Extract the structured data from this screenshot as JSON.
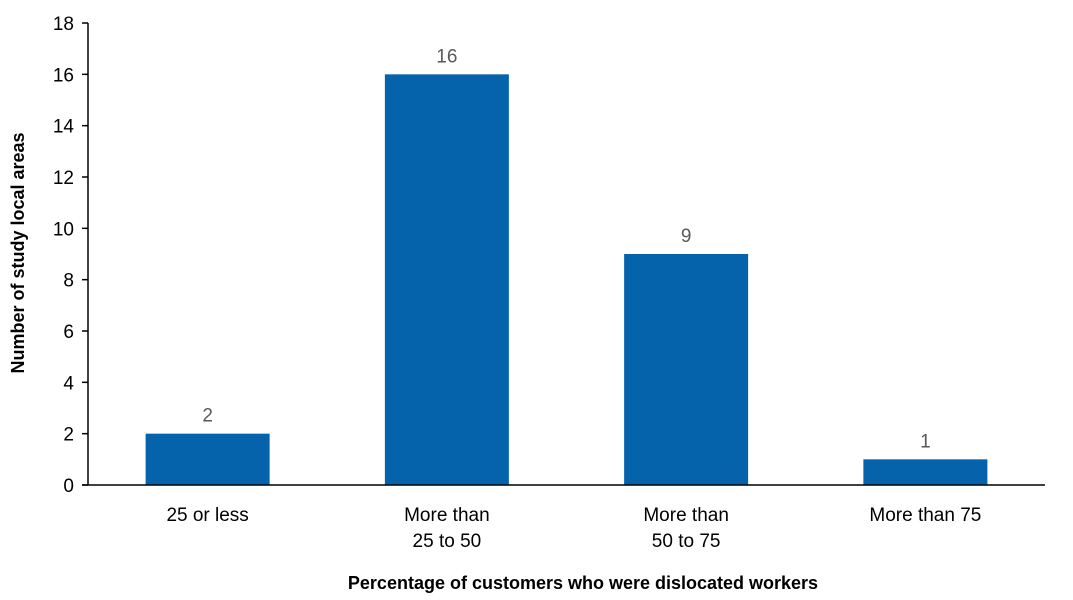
{
  "chart_data": {
    "type": "bar",
    "title": "",
    "xlabel": "Percentage of customers who were dislocated workers",
    "ylabel": "Number of study local areas",
    "categories": [
      [
        "25 or less"
      ],
      [
        "More than",
        "25 to 50"
      ],
      [
        "More than",
        "50 to 75"
      ],
      [
        "More than 75"
      ]
    ],
    "values": [
      2,
      16,
      9,
      1
    ],
    "data_labels": [
      "2",
      "16",
      "9",
      "1"
    ],
    "ylim": [
      0,
      18
    ],
    "yticks": [
      0,
      2,
      4,
      6,
      8,
      10,
      12,
      14,
      16,
      18
    ],
    "ytick_labels": [
      "0",
      "2",
      "4",
      "6",
      "8",
      "10",
      "12",
      "14",
      "16",
      "18"
    ],
    "grid": false,
    "legend": "none",
    "colors": {
      "bar": "#0563AB",
      "axis": "#000000",
      "data_label": "#595959"
    }
  }
}
